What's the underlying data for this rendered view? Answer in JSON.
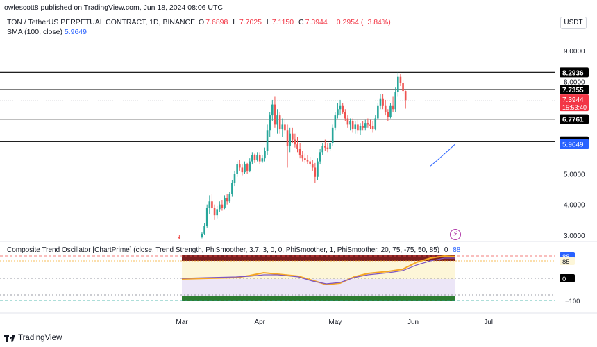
{
  "publish_line": "owlescott8 published on TradingView.com, Jun 18, 2024 08:06 UTC",
  "symbol": {
    "name": "TON / TetherUS PERPETUAL CONTRACT, 1D, BINANCE",
    "open_label": "O",
    "open": "7.6898",
    "high_label": "H",
    "high": "7.7025",
    "low_label": "L",
    "low": "7.1150",
    "close_label": "C",
    "close": "7.3944",
    "change": "−0.2954 (−3.84%)"
  },
  "sma_label": "SMA (100, close)",
  "sma_value": "5.9649",
  "currency_button": "USDT",
  "oscillator": {
    "label": "Composite Trend Oscillator [ChartPrime] (close, Trend Strength, PhiSmoother, 3.7, 3, 0, 0, PhiSmoother, 1, PhiSmoother, 20, 75, -75, 50, 85)",
    "value_a": "0",
    "value_b": "88",
    "ticks": [
      "88",
      "85",
      "0",
      "−100"
    ]
  },
  "brand": "TradingView",
  "colors": {
    "up": "#26a69a",
    "down": "#ef5350",
    "sma": "#2962ff",
    "price_tag": "#f23645",
    "level_line": "#000000",
    "osc_gold": "#f5a623",
    "osc_purple": "#7e57c2"
  },
  "icons": [
    "tradingview-logo-icon",
    "lightning-icon"
  ],
  "chart_data": {
    "type": "candlestick",
    "title": "",
    "xlabel": "",
    "ylabel": "",
    "x_ticks": [
      "Mar",
      "Apr",
      "May",
      "Jun",
      "Jul"
    ],
    "y_ticks": [
      "3.0000",
      "4.0000",
      "5.0000",
      "8.0000",
      "9.0000"
    ],
    "ylim": [
      2.85,
      9.65
    ],
    "grid": false,
    "horizontal_levels": [
      {
        "value": 8.2936,
        "label": "8.2936"
      },
      {
        "value": 7.7355,
        "label": "7.7355"
      },
      {
        "value": 6.7761,
        "label": "6.7761"
      },
      {
        "value": 6.052,
        "label": "6.0520"
      }
    ],
    "current_price": {
      "value": 7.3944,
      "label": "7.3944",
      "countdown": "15:53:40"
    },
    "sma": {
      "label": "5.9649",
      "values": [
        5.25,
        5.42,
        5.6,
        5.78,
        5.9649
      ]
    },
    "candles": [
      {
        "date": "2024-02-29",
        "o": 2.95,
        "h": 3.02,
        "l": 2.88,
        "c": 2.9
      },
      {
        "date": "2024-03-09",
        "o": 2.95,
        "h": 3.1,
        "l": 2.9,
        "c": 3.05
      },
      {
        "date": "2024-03-10",
        "o": 3.05,
        "h": 3.4,
        "l": 3.0,
        "c": 3.3
      },
      {
        "date": "2024-03-11",
        "o": 3.3,
        "h": 4.0,
        "l": 3.25,
        "c": 3.9
      },
      {
        "date": "2024-03-12",
        "o": 3.9,
        "h": 4.3,
        "l": 3.7,
        "c": 4.1
      },
      {
        "date": "2024-03-13",
        "o": 4.1,
        "h": 4.35,
        "l": 3.85,
        "c": 3.9
      },
      {
        "date": "2024-03-14",
        "o": 3.9,
        "h": 4.0,
        "l": 3.5,
        "c": 3.65
      },
      {
        "date": "2024-03-15",
        "o": 3.65,
        "h": 3.95,
        "l": 3.55,
        "c": 3.85
      },
      {
        "date": "2024-03-16",
        "o": 3.85,
        "h": 4.1,
        "l": 3.75,
        "c": 4.0
      },
      {
        "date": "2024-03-17",
        "o": 4.0,
        "h": 4.15,
        "l": 3.8,
        "c": 3.9
      },
      {
        "date": "2024-03-18",
        "o": 3.9,
        "h": 4.3,
        "l": 3.85,
        "c": 4.2
      },
      {
        "date": "2024-03-19",
        "o": 4.2,
        "h": 4.35,
        "l": 4.0,
        "c": 4.1
      },
      {
        "date": "2024-03-20",
        "o": 4.1,
        "h": 4.4,
        "l": 4.05,
        "c": 4.35
      },
      {
        "date": "2024-03-21",
        "o": 4.35,
        "h": 4.8,
        "l": 4.25,
        "c": 4.7
      },
      {
        "date": "2024-03-22",
        "o": 4.7,
        "h": 5.1,
        "l": 4.6,
        "c": 5.0
      },
      {
        "date": "2024-03-23",
        "o": 5.0,
        "h": 5.4,
        "l": 4.9,
        "c": 5.3
      },
      {
        "date": "2024-03-24",
        "o": 5.3,
        "h": 5.45,
        "l": 5.1,
        "c": 5.2
      },
      {
        "date": "2024-03-25",
        "o": 5.2,
        "h": 5.3,
        "l": 4.95,
        "c": 5.05
      },
      {
        "date": "2024-03-26",
        "o": 5.05,
        "h": 5.4,
        "l": 5.0,
        "c": 5.3
      },
      {
        "date": "2024-03-27",
        "o": 5.3,
        "h": 5.35,
        "l": 5.0,
        "c": 5.1
      },
      {
        "date": "2024-03-28",
        "o": 5.1,
        "h": 5.5,
        "l": 5.05,
        "c": 5.4
      },
      {
        "date": "2024-03-29",
        "o": 5.4,
        "h": 5.7,
        "l": 5.3,
        "c": 5.6
      },
      {
        "date": "2024-03-30",
        "o": 5.6,
        "h": 5.65,
        "l": 5.35,
        "c": 5.45
      },
      {
        "date": "2024-03-31",
        "o": 5.45,
        "h": 5.7,
        "l": 5.4,
        "c": 5.6
      },
      {
        "date": "2024-04-01",
        "o": 5.6,
        "h": 5.7,
        "l": 5.3,
        "c": 5.4
      },
      {
        "date": "2024-04-02",
        "o": 5.4,
        "h": 5.6,
        "l": 5.35,
        "c": 5.5
      },
      {
        "date": "2024-04-03",
        "o": 5.5,
        "h": 5.85,
        "l": 5.4,
        "c": 5.75
      },
      {
        "date": "2024-04-04",
        "o": 5.75,
        "h": 6.6,
        "l": 5.6,
        "c": 6.4
      },
      {
        "date": "2024-04-05",
        "o": 6.4,
        "h": 7.0,
        "l": 6.2,
        "c": 6.9
      },
      {
        "date": "2024-04-06",
        "o": 6.9,
        "h": 7.4,
        "l": 6.7,
        "c": 7.25
      },
      {
        "date": "2024-04-07",
        "o": 7.25,
        "h": 7.5,
        "l": 6.5,
        "c": 6.6
      },
      {
        "date": "2024-04-08",
        "o": 6.6,
        "h": 7.1,
        "l": 6.3,
        "c": 6.9
      },
      {
        "date": "2024-04-09",
        "o": 6.9,
        "h": 7.0,
        "l": 6.3,
        "c": 6.45
      },
      {
        "date": "2024-04-10",
        "o": 6.45,
        "h": 6.8,
        "l": 6.2,
        "c": 6.6
      },
      {
        "date": "2024-04-11",
        "o": 6.6,
        "h": 6.75,
        "l": 6.3,
        "c": 6.4
      },
      {
        "date": "2024-04-12",
        "o": 6.4,
        "h": 6.6,
        "l": 5.2,
        "c": 5.9
      },
      {
        "date": "2024-04-13",
        "o": 5.9,
        "h": 6.5,
        "l": 5.7,
        "c": 6.3
      },
      {
        "date": "2024-04-14",
        "o": 6.3,
        "h": 6.5,
        "l": 6.0,
        "c": 6.1
      },
      {
        "date": "2024-04-15",
        "o": 6.1,
        "h": 6.3,
        "l": 5.85,
        "c": 5.95
      },
      {
        "date": "2024-04-16",
        "o": 5.95,
        "h": 6.2,
        "l": 5.7,
        "c": 5.8
      },
      {
        "date": "2024-04-17",
        "o": 5.8,
        "h": 6.0,
        "l": 5.5,
        "c": 5.6
      },
      {
        "date": "2024-04-18",
        "o": 5.6,
        "h": 5.75,
        "l": 5.4,
        "c": 5.5
      },
      {
        "date": "2024-04-19",
        "o": 5.5,
        "h": 5.65,
        "l": 5.35,
        "c": 5.45
      },
      {
        "date": "2024-04-20",
        "o": 5.45,
        "h": 5.6,
        "l": 5.3,
        "c": 5.4
      },
      {
        "date": "2024-04-21",
        "o": 5.4,
        "h": 5.55,
        "l": 5.25,
        "c": 5.3
      },
      {
        "date": "2024-04-22",
        "o": 5.3,
        "h": 5.45,
        "l": 5.1,
        "c": 5.2
      },
      {
        "date": "2024-04-23",
        "o": 5.2,
        "h": 5.35,
        "l": 4.7,
        "c": 4.9
      },
      {
        "date": "2024-04-24",
        "o": 4.9,
        "h": 5.5,
        "l": 4.8,
        "c": 5.4
      },
      {
        "date": "2024-04-25",
        "o": 5.4,
        "h": 5.8,
        "l": 5.3,
        "c": 5.7
      },
      {
        "date": "2024-04-26",
        "o": 5.7,
        "h": 6.0,
        "l": 5.6,
        "c": 5.9
      },
      {
        "date": "2024-04-27",
        "o": 5.9,
        "h": 6.1,
        "l": 5.75,
        "c": 5.85
      },
      {
        "date": "2024-04-28",
        "o": 5.85,
        "h": 6.0,
        "l": 5.7,
        "c": 5.8
      },
      {
        "date": "2024-04-29",
        "o": 5.8,
        "h": 6.1,
        "l": 5.75,
        "c": 6.0
      },
      {
        "date": "2024-04-30",
        "o": 6.0,
        "h": 6.6,
        "l": 5.9,
        "c": 6.5
      },
      {
        "date": "2024-05-01",
        "o": 6.5,
        "h": 7.0,
        "l": 6.4,
        "c": 6.9
      },
      {
        "date": "2024-05-02",
        "o": 6.9,
        "h": 7.3,
        "l": 6.8,
        "c": 7.1
      },
      {
        "date": "2024-05-03",
        "o": 7.1,
        "h": 7.4,
        "l": 6.9,
        "c": 7.2
      },
      {
        "date": "2024-05-04",
        "o": 7.2,
        "h": 7.3,
        "l": 6.95,
        "c": 7.0
      },
      {
        "date": "2024-05-05",
        "o": 7.0,
        "h": 7.1,
        "l": 6.7,
        "c": 6.8
      },
      {
        "date": "2024-05-06",
        "o": 6.8,
        "h": 6.9,
        "l": 6.5,
        "c": 6.6
      },
      {
        "date": "2024-05-07",
        "o": 6.6,
        "h": 6.8,
        "l": 6.4,
        "c": 6.7
      },
      {
        "date": "2024-05-08",
        "o": 6.7,
        "h": 6.8,
        "l": 6.35,
        "c": 6.45
      },
      {
        "date": "2024-05-09",
        "o": 6.45,
        "h": 6.7,
        "l": 6.3,
        "c": 6.6
      },
      {
        "date": "2024-05-10",
        "o": 6.6,
        "h": 6.75,
        "l": 6.3,
        "c": 6.4
      },
      {
        "date": "2024-05-11",
        "o": 6.4,
        "h": 6.65,
        "l": 6.25,
        "c": 6.55
      },
      {
        "date": "2024-05-12",
        "o": 6.55,
        "h": 6.7,
        "l": 6.4,
        "c": 6.5
      },
      {
        "date": "2024-05-13",
        "o": 6.5,
        "h": 6.75,
        "l": 6.4,
        "c": 6.65
      },
      {
        "date": "2024-05-14",
        "o": 6.65,
        "h": 6.8,
        "l": 6.5,
        "c": 6.6
      },
      {
        "date": "2024-05-15",
        "o": 6.6,
        "h": 6.75,
        "l": 6.45,
        "c": 6.55
      },
      {
        "date": "2024-05-16",
        "o": 6.55,
        "h": 6.7,
        "l": 6.35,
        "c": 6.45
      },
      {
        "date": "2024-05-17",
        "o": 6.45,
        "h": 6.9,
        "l": 6.4,
        "c": 6.8
      },
      {
        "date": "2024-05-18",
        "o": 6.8,
        "h": 7.3,
        "l": 6.75,
        "c": 7.2
      },
      {
        "date": "2024-05-19",
        "o": 7.2,
        "h": 7.6,
        "l": 7.1,
        "c": 7.45
      },
      {
        "date": "2024-05-20",
        "o": 7.45,
        "h": 7.6,
        "l": 7.1,
        "c": 7.2
      },
      {
        "date": "2024-05-21",
        "o": 7.2,
        "h": 7.4,
        "l": 6.9,
        "c": 7.0
      },
      {
        "date": "2024-05-22",
        "o": 7.0,
        "h": 7.1,
        "l": 6.7,
        "c": 6.85
      },
      {
        "date": "2024-05-23",
        "o": 6.85,
        "h": 7.3,
        "l": 6.8,
        "c": 7.2
      },
      {
        "date": "2024-05-24",
        "o": 7.2,
        "h": 7.5,
        "l": 7.0,
        "c": 7.1
      },
      {
        "date": "2024-05-25",
        "o": 7.1,
        "h": 7.8,
        "l": 7.0,
        "c": 7.65
      },
      {
        "date": "2024-05-26",
        "o": 7.65,
        "h": 8.3,
        "l": 7.5,
        "c": 8.15
      },
      {
        "date": "2024-05-27",
        "o": 8.15,
        "h": 8.25,
        "l": 7.85,
        "c": 7.95
      },
      {
        "date": "2024-05-28",
        "o": 7.95,
        "h": 8.05,
        "l": 7.6,
        "c": 7.69
      },
      {
        "date": "2024-05-29",
        "o": 7.6898,
        "h": 7.7025,
        "l": 7.115,
        "c": 7.3944
      }
    ]
  }
}
